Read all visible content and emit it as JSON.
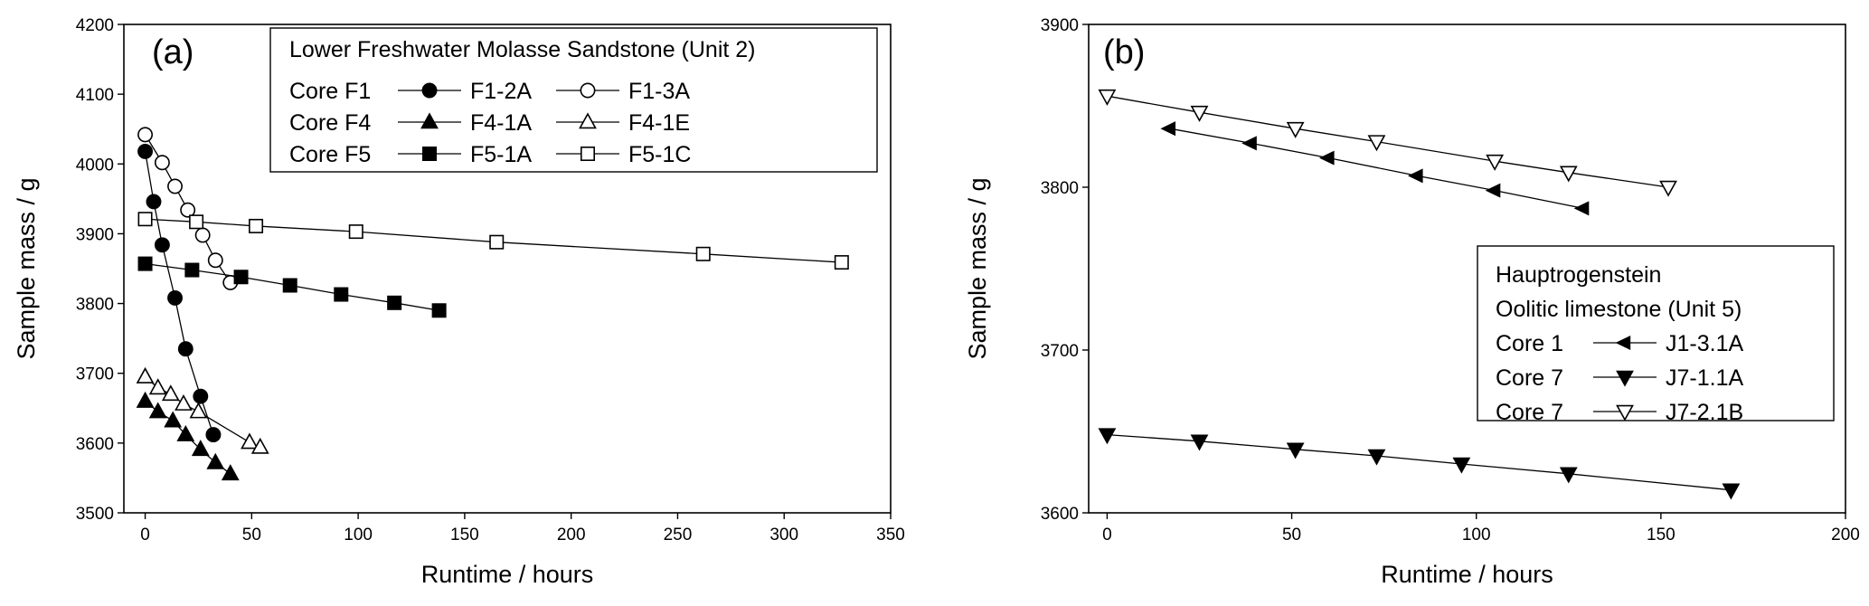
{
  "chart_data": [
    {
      "type": "scatter",
      "panel_label": "(a)",
      "xlabel": "Runtime / hours",
      "ylabel": "Sample mass / g",
      "xlim": [
        -10,
        350
      ],
      "ylim": [
        3500,
        4200
      ],
      "xticks": [
        0,
        50,
        100,
        150,
        200,
        250,
        300,
        350
      ],
      "yticks": [
        3500,
        3600,
        3700,
        3800,
        3900,
        4000,
        4100,
        4200
      ],
      "grid": false,
      "legend_position": "top-right",
      "legend": {
        "title": "Lower Freshwater Molasse Sandstone (Unit 2)",
        "rows": [
          {
            "label": "Core F1",
            "entries": [
              "F1-2A",
              "F1-3A"
            ]
          },
          {
            "label": "Core F4",
            "entries": [
              "F4-1A",
              "F4-1E"
            ]
          },
          {
            "label": "Core F5",
            "entries": [
              "F5-1A",
              "F5-1C"
            ]
          }
        ]
      },
      "series": [
        {
          "name": "F1-2A",
          "marker": "circle",
          "filled": true,
          "x": [
            0,
            4,
            8,
            14,
            19,
            26,
            32
          ],
          "y": [
            4018,
            3946,
            3884,
            3808,
            3735,
            3667,
            3612
          ]
        },
        {
          "name": "F1-3A",
          "marker": "circle",
          "filled": false,
          "x": [
            0,
            8,
            14,
            20,
            27,
            33,
            40
          ],
          "y": [
            4042,
            4002,
            3968,
            3934,
            3898,
            3862,
            3830
          ]
        },
        {
          "name": "F4-1A",
          "marker": "triangle-up",
          "filled": true,
          "x": [
            0,
            6,
            13,
            19,
            26,
            33,
            40
          ],
          "y": [
            3660,
            3645,
            3632,
            3612,
            3591,
            3572,
            3556
          ]
        },
        {
          "name": "F4-1E",
          "marker": "triangle-up",
          "filled": false,
          "x": [
            0,
            6,
            12,
            18,
            25,
            49,
            54
          ],
          "y": [
            3695,
            3679,
            3670,
            3656,
            3645,
            3601,
            3594
          ]
        },
        {
          "name": "F5-1A",
          "marker": "square",
          "filled": true,
          "x": [
            0,
            22,
            45,
            68,
            92,
            117,
            138
          ],
          "y": [
            3857,
            3848,
            3838,
            3826,
            3813,
            3801,
            3790
          ]
        },
        {
          "name": "F5-1C",
          "marker": "square",
          "filled": false,
          "x": [
            0,
            24,
            52,
            99,
            165,
            262,
            327
          ],
          "y": [
            3921,
            3917,
            3911,
            3903,
            3888,
            3871,
            3859
          ]
        }
      ]
    },
    {
      "type": "scatter",
      "panel_label": "(b)",
      "xlabel": "Runtime / hours",
      "ylabel": "Sample mass / g",
      "xlim": [
        -5,
        200
      ],
      "ylim": [
        3600,
        3900
      ],
      "xticks": [
        0,
        50,
        100,
        150,
        200
      ],
      "yticks": [
        3600,
        3700,
        3800,
        3900
      ],
      "grid": false,
      "legend_position": "center-right",
      "legend": {
        "title_lines": [
          "Hauptrogenstein",
          "Oolitic limestone (Unit 5)"
        ],
        "rows": [
          {
            "label": "Core 1",
            "entries": [
              "J1-3.1A"
            ]
          },
          {
            "label": "Core 7",
            "entries": [
              "J7-1.1A"
            ]
          },
          {
            "label": "Core 7",
            "entries": [
              "J7-2.1B"
            ]
          }
        ]
      },
      "series": [
        {
          "name": "J1-3.1A",
          "marker": "triangle-left",
          "filled": true,
          "x": [
            17,
            39,
            60,
            84,
            105,
            129
          ],
          "y": [
            3836,
            3827,
            3818,
            3807,
            3798,
            3787
          ]
        },
        {
          "name": "J7-1.1A",
          "marker": "triangle-down",
          "filled": true,
          "x": [
            0,
            25,
            51,
            73,
            96,
            125,
            169
          ],
          "y": [
            3648,
            3644,
            3639,
            3635,
            3630,
            3624,
            3614
          ]
        },
        {
          "name": "J7-2.1B",
          "marker": "triangle-down",
          "filled": false,
          "x": [
            0,
            25,
            51,
            73,
            105,
            125,
            152
          ],
          "y": [
            3856,
            3846,
            3836,
            3828,
            3816,
            3809,
            3800
          ]
        }
      ]
    }
  ]
}
